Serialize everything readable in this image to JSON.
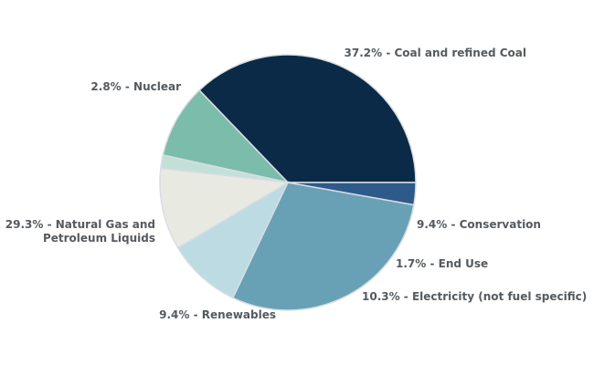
{
  "chart_data": {
    "type": "pie",
    "slices": [
      {
        "label": "37.2% - Coal and refined Coal",
        "value": 37.2,
        "color": "#0b2a47"
      },
      {
        "label": "9.4% - Conservation",
        "value": 9.4,
        "color": "#7bbcaa"
      },
      {
        "label": "1.7% - End Use",
        "value": 1.7,
        "color": "#c3e0d8"
      },
      {
        "label": "10.3% - Electricity (not fuel specific)",
        "value": 10.3,
        "color": "#e8eae2"
      },
      {
        "label": "9.4% - Renewables",
        "value": 9.4,
        "color": "#bcdbe3"
      },
      {
        "label": "29.3% - Natural Gas and Petroleum Liquids",
        "value": 29.3,
        "color": "#68a1b6"
      },
      {
        "label": "2.8% - Nuclear",
        "value": 2.8,
        "color": "#2e5a8a"
      }
    ]
  }
}
